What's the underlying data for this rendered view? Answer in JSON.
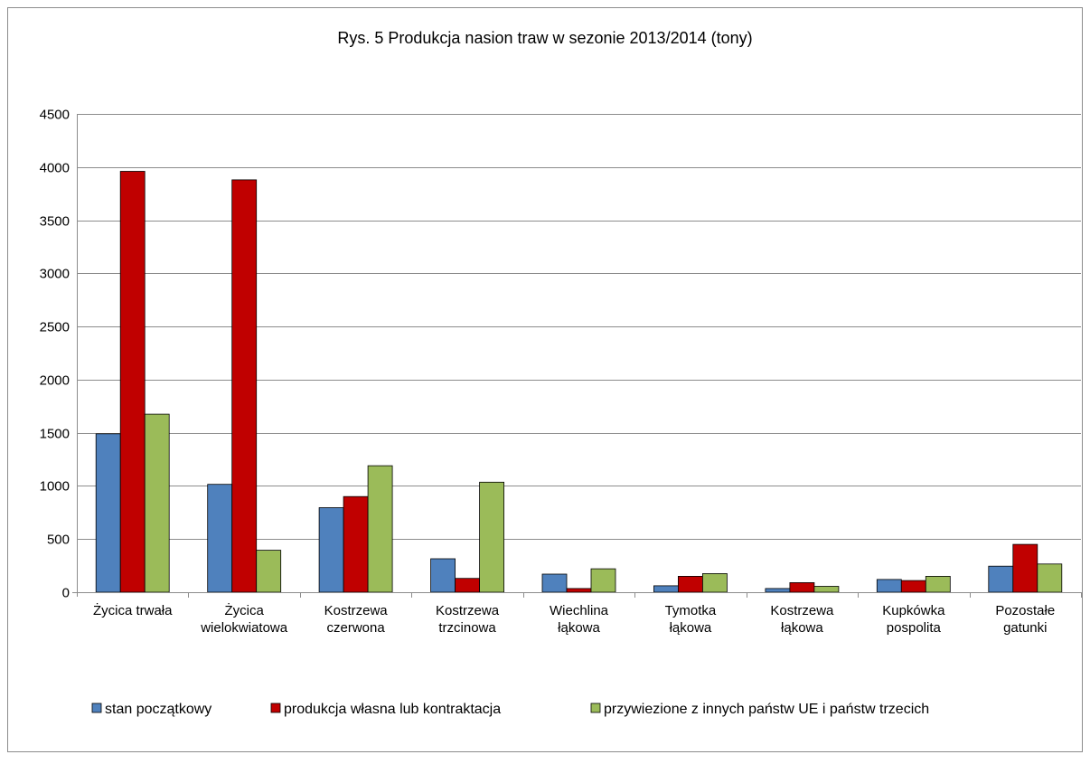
{
  "chart_data": {
    "type": "bar",
    "title": "Rys. 5 Produkcja nasion traw w sezonie 2013/2014  (tony)",
    "xlabel": "",
    "ylabel": "",
    "ylim": [
      0,
      4500
    ],
    "yticks": [
      "0",
      "500",
      "1000",
      "1500",
      "2000",
      "2500",
      "3000",
      "3500",
      "4000",
      "4500"
    ],
    "grid": true,
    "legend_position": "bottom",
    "categories": [
      [
        "Życica trwała"
      ],
      [
        "Życica",
        "wielokwiatowa"
      ],
      [
        "Kostrzewa",
        "czerwona"
      ],
      [
        "Kostrzewa",
        "trzcinowa"
      ],
      [
        "Wiechlina",
        "łąkowa"
      ],
      [
        "Tymotka",
        "łąkowa"
      ],
      [
        "Kostrzewa",
        "łąkowa"
      ],
      [
        "Kupkówka",
        "pospolita"
      ],
      [
        "Pozostałe",
        "gatunki"
      ]
    ],
    "series": [
      {
        "name": "stan początkowy",
        "color": "#4F81BD",
        "values": [
          1490,
          1015,
          795,
          315,
          170,
          60,
          35,
          120,
          245
        ]
      },
      {
        "name": "produkcja własna lub kontraktacja",
        "color": "#C00000",
        "values": [
          3960,
          3880,
          900,
          130,
          35,
          150,
          90,
          110,
          450
        ]
      },
      {
        "name": "przywiezione  z innych państw UE i państw trzecich",
        "color": "#9BBB59",
        "values": [
          1675,
          395,
          1190,
          1035,
          220,
          175,
          55,
          150,
          265
        ]
      }
    ]
  }
}
